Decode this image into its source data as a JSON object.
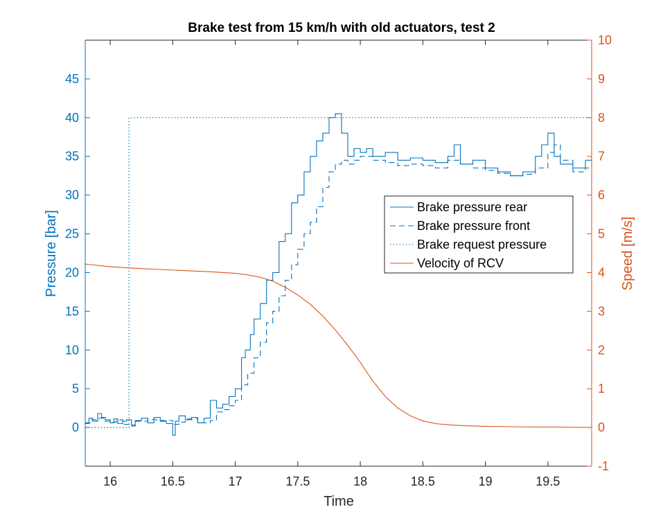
{
  "chart_data": {
    "type": "line",
    "title": "Brake test from 15 km/h with old actuators, test 2",
    "xlabel": "Time",
    "ylabel_left": "Pressure [bar]",
    "ylabel_right": "Speed [m/s]",
    "xlim": [
      15.8,
      19.85
    ],
    "ylim_left": [
      -5,
      50
    ],
    "ylim_right": [
      -1,
      10
    ],
    "x_ticks": [
      "16",
      "16.5",
      "17",
      "17.5",
      "18",
      "18.5",
      "19",
      "19.5"
    ],
    "x_tick_values": [
      16,
      16.5,
      17,
      17.5,
      18,
      18.5,
      19,
      19.5
    ],
    "y_left_ticks": [
      "0",
      "5",
      "10",
      "15",
      "20",
      "25",
      "30",
      "35",
      "40",
      "45"
    ],
    "y_left_tick_values": [
      0,
      5,
      10,
      15,
      20,
      25,
      30,
      35,
      40,
      45
    ],
    "y_right_ticks": [
      "-1",
      "0",
      "1",
      "2",
      "3",
      "4",
      "5",
      "6",
      "7",
      "8",
      "9",
      "10"
    ],
    "y_right_tick_values": [
      -1,
      0,
      1,
      2,
      3,
      4,
      5,
      6,
      7,
      8,
      9,
      10
    ],
    "grid": false,
    "legend_position": "center-right",
    "colors": {
      "pressure": "#0072BD",
      "speed": "#D95319",
      "axis": "#262626"
    },
    "series": [
      {
        "name": "Brake pressure rear",
        "axis": "left",
        "style": "solid",
        "step": true,
        "x": [
          15.8,
          15.83,
          15.86,
          15.9,
          15.93,
          15.96,
          16.0,
          16.03,
          16.06,
          16.1,
          16.13,
          16.17,
          16.2,
          16.25,
          16.3,
          16.35,
          16.4,
          16.45,
          16.5,
          16.52,
          16.55,
          16.6,
          16.65,
          16.7,
          16.75,
          16.8,
          16.85,
          16.9,
          16.95,
          17.0,
          17.05,
          17.08,
          17.12,
          17.15,
          17.2,
          17.25,
          17.3,
          17.35,
          17.4,
          17.45,
          17.5,
          17.55,
          17.6,
          17.65,
          17.7,
          17.75,
          17.8,
          17.85,
          17.9,
          17.95,
          18.0,
          18.05,
          18.1,
          18.2,
          18.3,
          18.4,
          18.5,
          18.6,
          18.7,
          18.75,
          18.8,
          18.9,
          19.0,
          19.1,
          19.2,
          19.3,
          19.4,
          19.45,
          19.5,
          19.55,
          19.6,
          19.7,
          19.8,
          19.85
        ],
        "y": [
          0.5,
          1.2,
          0.8,
          1.8,
          1.3,
          1.0,
          0.6,
          1.1,
          0.5,
          0.8,
          1.0,
          0.3,
          0.9,
          1.2,
          0.6,
          1.3,
          0.8,
          0.5,
          -1.0,
          0.8,
          1.5,
          1.0,
          1.3,
          0.6,
          1.2,
          3.5,
          2.5,
          3.0,
          4.0,
          5.0,
          9.0,
          10.0,
          12.0,
          14.0,
          16.0,
          19.0,
          20.0,
          24.0,
          25.0,
          29.0,
          30.0,
          33.0,
          35.0,
          37.0,
          38.0,
          40.0,
          40.5,
          38.0,
          35.0,
          36.0,
          35.5,
          36.0,
          35.0,
          35.5,
          34.5,
          34.8,
          34.5,
          34.2,
          35.0,
          36.5,
          34.0,
          34.5,
          33.5,
          33.0,
          32.5,
          33.0,
          35.0,
          36.5,
          38.0,
          35.0,
          34.0,
          33.5,
          34.5,
          35.5
        ]
      },
      {
        "name": "Brake pressure front",
        "axis": "left",
        "style": "dashed",
        "step": true,
        "x": [
          15.8,
          15.85,
          15.9,
          15.95,
          16.0,
          16.05,
          16.1,
          16.15,
          16.2,
          16.3,
          16.4,
          16.5,
          16.55,
          16.6,
          16.7,
          16.8,
          16.85,
          16.9,
          16.95,
          17.0,
          17.05,
          17.1,
          17.15,
          17.2,
          17.25,
          17.3,
          17.35,
          17.4,
          17.45,
          17.5,
          17.55,
          17.6,
          17.65,
          17.7,
          17.75,
          17.8,
          17.85,
          17.9,
          17.95,
          18.0,
          18.1,
          18.2,
          18.3,
          18.4,
          18.5,
          18.6,
          18.7,
          18.8,
          18.9,
          19.0,
          19.1,
          19.2,
          19.3,
          19.4,
          19.5,
          19.55,
          19.6,
          19.7,
          19.8,
          19.85
        ],
        "y": [
          0.6,
          1.0,
          1.2,
          0.8,
          0.7,
          1.0,
          0.4,
          0.2,
          0.8,
          1.0,
          0.9,
          0.4,
          0.7,
          1.1,
          0.6,
          0.9,
          2.0,
          2.3,
          2.8,
          3.5,
          5.5,
          7.0,
          9.0,
          11.0,
          13.5,
          15.0,
          17.0,
          19.0,
          21.0,
          23.0,
          25.0,
          26.5,
          28.5,
          31.0,
          33.0,
          34.0,
          34.5,
          34.0,
          34.5,
          35.0,
          34.5,
          34.2,
          33.8,
          34.0,
          33.8,
          33.5,
          34.5,
          34.0,
          33.5,
          33.2,
          32.8,
          32.5,
          32.7,
          33.5,
          35.5,
          36.5,
          34.5,
          33.0,
          33.5,
          34.0
        ]
      },
      {
        "name": "Brake request pressure",
        "axis": "left",
        "style": "dotted",
        "step": false,
        "x": [
          15.8,
          16.15,
          16.15,
          19.85
        ],
        "y": [
          0,
          0,
          40,
          40
        ]
      },
      {
        "name": "Velocity of RCV",
        "axis": "right",
        "style": "solid",
        "step": false,
        "x": [
          15.8,
          16.0,
          16.2,
          16.4,
          16.6,
          16.8,
          17.0,
          17.1,
          17.2,
          17.3,
          17.4,
          17.5,
          17.6,
          17.7,
          17.8,
          17.9,
          18.0,
          18.1,
          18.2,
          18.3,
          18.4,
          18.5,
          18.6,
          18.7,
          18.8,
          18.9,
          19.0,
          19.2,
          19.4,
          19.6,
          19.85
        ],
        "y": [
          4.22,
          4.15,
          4.11,
          4.08,
          4.05,
          4.02,
          3.98,
          3.94,
          3.88,
          3.78,
          3.62,
          3.42,
          3.18,
          2.88,
          2.52,
          2.12,
          1.68,
          1.2,
          0.8,
          0.5,
          0.3,
          0.17,
          0.1,
          0.07,
          0.05,
          0.04,
          0.03,
          0.02,
          0.01,
          0.01,
          0.0
        ]
      }
    ]
  }
}
